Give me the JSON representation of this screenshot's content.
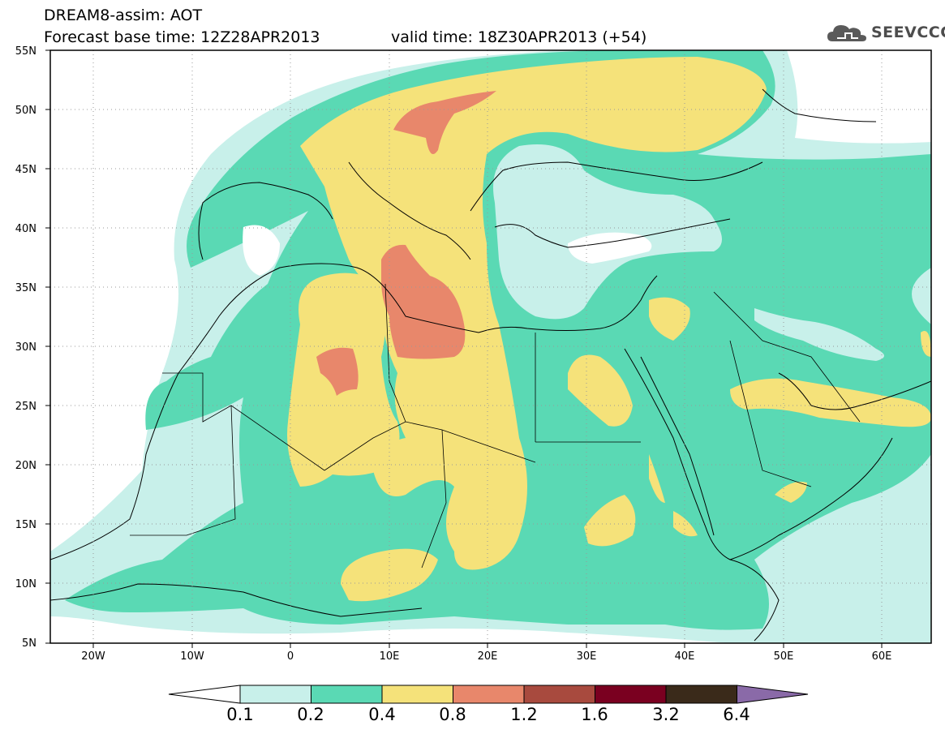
{
  "header": {
    "title_line1": "DREAM8-assim: AOT",
    "base_time": "Forecast base time: 12Z28APR2013",
    "valid_time": "valid time: 18Z30APR2013 (+54)"
  },
  "logo": {
    "text": "SEEVCCC",
    "icon": "cloud-icon"
  },
  "axes": {
    "lat_labels": [
      "55N",
      "50N",
      "45N",
      "40N",
      "35N",
      "30N",
      "25N",
      "20N",
      "15N",
      "10N",
      "5N"
    ],
    "lon_labels": [
      "20W",
      "10W",
      "0",
      "10E",
      "20E",
      "30E",
      "40E",
      "50E",
      "60E"
    ]
  },
  "colorbar": {
    "labels": [
      "0.1",
      "0.2",
      "0.4",
      "0.8",
      "1.2",
      "1.6",
      "3.2",
      "6.4"
    ],
    "colors": [
      "#ffffff",
      "#c8f0ea",
      "#5ad9b4",
      "#f5e27a",
      "#e8876b",
      "#a84a3e",
      "#7a0020",
      "#3a2a1a",
      "#8a6aa8"
    ]
  },
  "map_colors": {
    "c1": "#c8f0ea",
    "c2": "#5ad9b4",
    "c3": "#f5e27a",
    "c4": "#e8876b"
  }
}
